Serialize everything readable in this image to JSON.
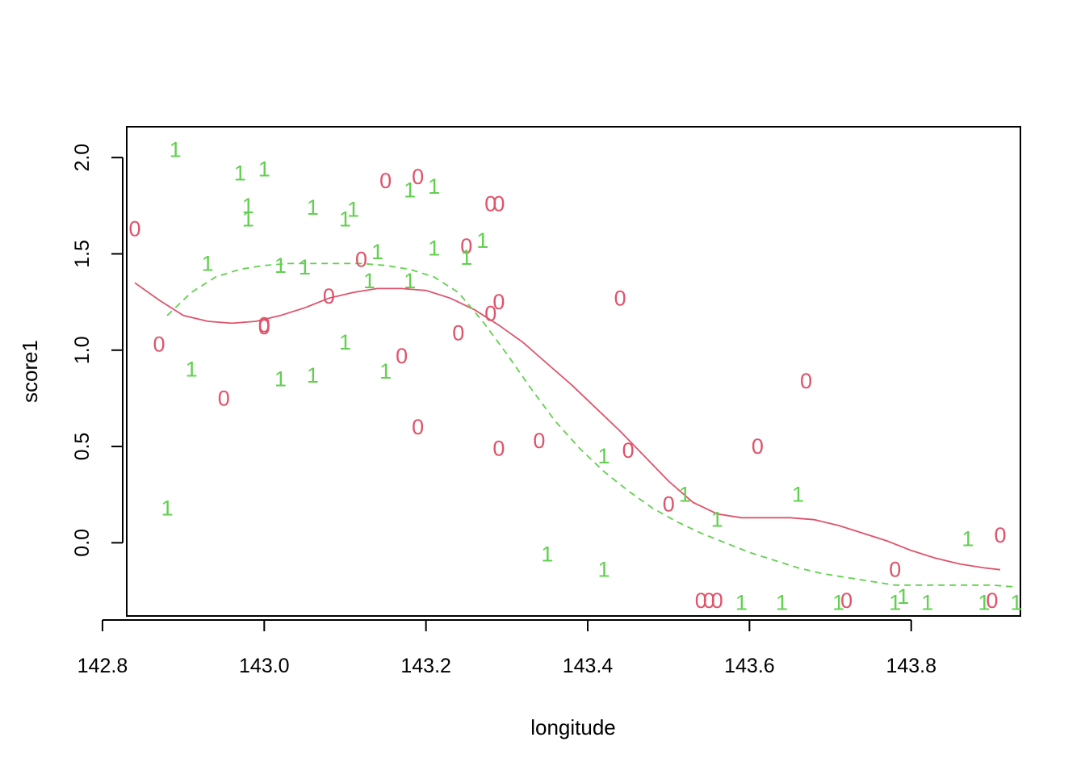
{
  "chart_data": {
    "type": "scatter",
    "title": "",
    "xlabel": "longitude",
    "ylabel": "score1",
    "xlim": [
      142.83,
      143.935
    ],
    "ylim": [
      -0.38,
      2.16
    ],
    "xticks": [
      142.8,
      143.0,
      143.2,
      143.4,
      143.6,
      143.8
    ],
    "xtick_labels": [
      "142.8",
      "143.0",
      "143.2",
      "143.4",
      "143.6",
      "143.8"
    ],
    "yticks": [
      0.0,
      0.5,
      1.0,
      1.5,
      2.0
    ],
    "ytick_labels": [
      "0.0",
      "0.5",
      "1.0",
      "1.5",
      "2.0"
    ],
    "grid": false,
    "legend": "none",
    "colors": {
      "group0": "#DF536B",
      "group1": "#61D04F",
      "axis": "#000000"
    },
    "series": [
      {
        "symbol": "0",
        "color": "#DF536B",
        "points": [
          [
            142.84,
            1.63
          ],
          [
            142.87,
            1.03
          ],
          [
            142.95,
            0.75
          ],
          [
            143.0,
            1.13
          ],
          [
            143.0,
            1.12
          ],
          [
            143.08,
            1.28
          ],
          [
            143.12,
            1.47
          ],
          [
            143.15,
            1.88
          ],
          [
            143.17,
            0.97
          ],
          [
            143.19,
            1.9
          ],
          [
            143.19,
            0.6
          ],
          [
            143.24,
            1.09
          ],
          [
            143.25,
            1.54
          ],
          [
            143.28,
            1.76
          ],
          [
            143.29,
            1.76
          ],
          [
            143.28,
            1.19
          ],
          [
            143.29,
            1.25
          ],
          [
            143.29,
            0.49
          ],
          [
            143.34,
            0.53
          ],
          [
            143.44,
            1.27
          ],
          [
            143.45,
            0.48
          ],
          [
            143.5,
            0.2
          ],
          [
            143.54,
            -0.3
          ],
          [
            143.55,
            -0.3
          ],
          [
            143.56,
            -0.3
          ],
          [
            143.61,
            0.5
          ],
          [
            143.67,
            0.84
          ],
          [
            143.72,
            -0.3
          ],
          [
            143.78,
            -0.14
          ],
          [
            143.9,
            -0.3
          ],
          [
            143.91,
            0.04
          ]
        ]
      },
      {
        "symbol": "1",
        "color": "#61D04F",
        "points": [
          [
            142.88,
            0.18
          ],
          [
            142.89,
            2.04
          ],
          [
            142.91,
            0.9
          ],
          [
            142.93,
            1.45
          ],
          [
            142.97,
            1.92
          ],
          [
            142.98,
            1.75
          ],
          [
            142.98,
            1.68
          ],
          [
            143.0,
            1.94
          ],
          [
            143.02,
            1.44
          ],
          [
            143.02,
            0.85
          ],
          [
            143.05,
            1.43
          ],
          [
            143.06,
            1.74
          ],
          [
            143.06,
            0.87
          ],
          [
            143.1,
            1.68
          ],
          [
            143.1,
            1.04
          ],
          [
            143.11,
            1.73
          ],
          [
            143.13,
            1.36
          ],
          [
            143.14,
            1.51
          ],
          [
            143.15,
            0.89
          ],
          [
            143.18,
            1.83
          ],
          [
            143.18,
            1.36
          ],
          [
            143.21,
            1.85
          ],
          [
            143.21,
            1.53
          ],
          [
            143.25,
            1.48
          ],
          [
            143.27,
            1.57
          ],
          [
            143.35,
            -0.06
          ],
          [
            143.42,
            -0.14
          ],
          [
            143.42,
            0.45
          ],
          [
            143.52,
            0.25
          ],
          [
            143.56,
            0.12
          ],
          [
            143.59,
            -0.31
          ],
          [
            143.64,
            -0.31
          ],
          [
            143.66,
            0.25
          ],
          [
            143.71,
            -0.31
          ],
          [
            143.78,
            -0.31
          ],
          [
            143.79,
            -0.28
          ],
          [
            143.82,
            -0.31
          ],
          [
            143.87,
            0.02
          ],
          [
            143.89,
            -0.31
          ],
          [
            143.93,
            -0.31
          ]
        ]
      }
    ],
    "smooth_lines": [
      {
        "group": "0",
        "style": "solid",
        "color": "#DF536B",
        "x": [
          142.84,
          142.87,
          142.9,
          142.93,
          142.96,
          142.99,
          143.02,
          143.05,
          143.08,
          143.11,
          143.14,
          143.17,
          143.2,
          143.23,
          143.26,
          143.29,
          143.32,
          143.35,
          143.38,
          143.41,
          143.44,
          143.47,
          143.5,
          143.53,
          143.56,
          143.59,
          143.62,
          143.65,
          143.68,
          143.71,
          143.74,
          143.77,
          143.8,
          143.83,
          143.86,
          143.89,
          143.91
        ],
        "y": [
          1.35,
          1.26,
          1.18,
          1.15,
          1.14,
          1.15,
          1.18,
          1.22,
          1.27,
          1.3,
          1.32,
          1.32,
          1.31,
          1.27,
          1.21,
          1.13,
          1.04,
          0.93,
          0.82,
          0.7,
          0.58,
          0.45,
          0.32,
          0.21,
          0.15,
          0.13,
          0.13,
          0.13,
          0.12,
          0.09,
          0.05,
          0.01,
          -0.04,
          -0.08,
          -0.11,
          -0.13,
          -0.14
        ]
      },
      {
        "group": "1",
        "style": "dashed",
        "color": "#61D04F",
        "x": [
          142.88,
          142.91,
          142.94,
          142.97,
          143.0,
          143.03,
          143.06,
          143.09,
          143.12,
          143.15,
          143.18,
          143.21,
          143.24,
          143.27,
          143.3,
          143.33,
          143.36,
          143.39,
          143.42,
          143.45,
          143.48,
          143.51,
          143.54,
          143.57,
          143.6,
          143.63,
          143.66,
          143.69,
          143.72,
          143.75,
          143.78,
          143.81,
          143.84,
          143.87,
          143.9,
          143.93
        ],
        "y": [
          1.18,
          1.3,
          1.38,
          1.42,
          1.44,
          1.45,
          1.45,
          1.45,
          1.45,
          1.44,
          1.42,
          1.38,
          1.3,
          1.15,
          0.98,
          0.8,
          0.63,
          0.49,
          0.37,
          0.27,
          0.18,
          0.11,
          0.05,
          0.0,
          -0.05,
          -0.09,
          -0.13,
          -0.16,
          -0.18,
          -0.2,
          -0.22,
          -0.22,
          -0.22,
          -0.22,
          -0.22,
          -0.23
        ]
      }
    ]
  }
}
